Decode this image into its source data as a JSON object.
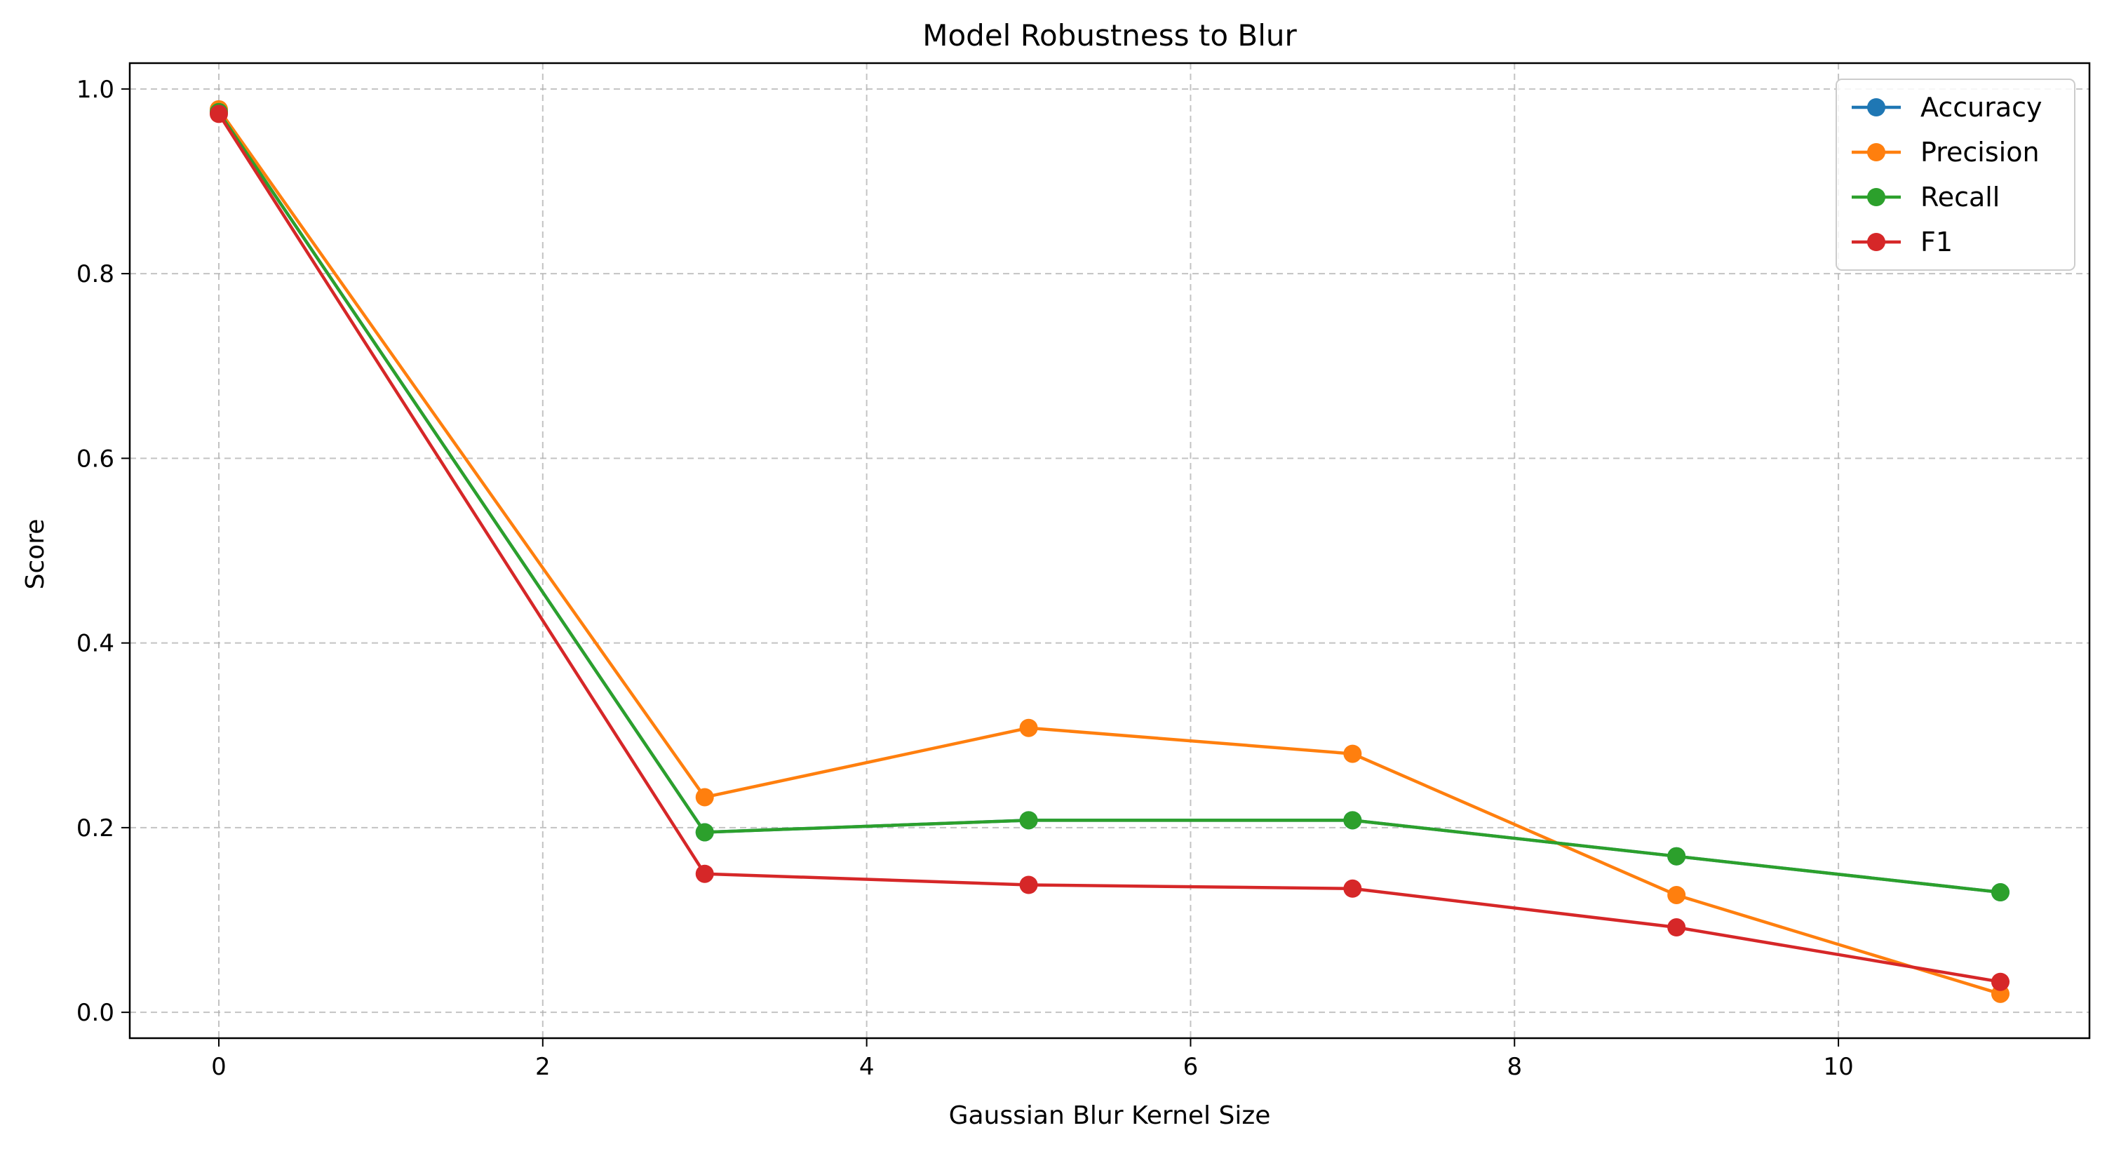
{
  "chart_data": {
    "type": "line",
    "title": "Model Robustness to Blur",
    "xlabel": "Gaussian Blur Kernel Size",
    "ylabel": "Score",
    "xlim": [
      -0.55,
      11.55
    ],
    "ylim": [
      -0.028,
      1.028
    ],
    "xticks": [
      0,
      2,
      4,
      6,
      8,
      10
    ],
    "yticks": [
      0.0,
      0.2,
      0.4,
      0.6,
      0.8,
      1.0
    ],
    "xtick_labels": [
      "0",
      "2",
      "4",
      "6",
      "8",
      "10"
    ],
    "ytick_labels": [
      "0.0",
      "0.2",
      "0.4",
      "0.6",
      "0.8",
      "1.0"
    ],
    "grid": true,
    "legend_position": "top-right",
    "x": [
      0,
      3,
      5,
      7,
      9,
      11
    ],
    "series": [
      {
        "name": "Accuracy",
        "color": "#1f77b4",
        "values": [
          0.975,
          0.195,
          0.208,
          0.208,
          0.169,
          0.13
        ]
      },
      {
        "name": "Precision",
        "color": "#ff7f0e",
        "values": [
          0.978,
          0.233,
          0.308,
          0.28,
          0.127,
          0.02
        ]
      },
      {
        "name": "Recall",
        "color": "#2ca02c",
        "values": [
          0.975,
          0.195,
          0.208,
          0.208,
          0.169,
          0.13
        ]
      },
      {
        "name": "F1",
        "color": "#d62728",
        "values": [
          0.973,
          0.15,
          0.138,
          0.134,
          0.092,
          0.033
        ]
      }
    ]
  }
}
